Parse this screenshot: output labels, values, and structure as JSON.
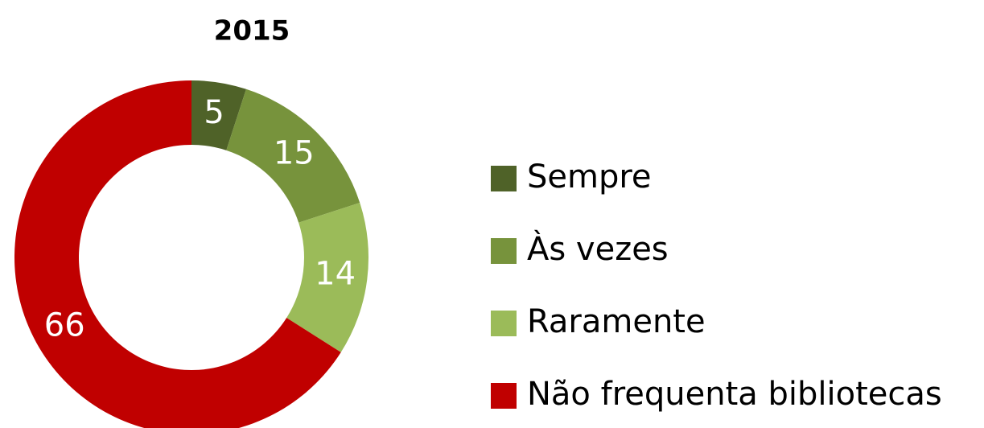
{
  "chart_data": {
    "type": "donut",
    "title": "2015",
    "categories": [
      "Sempre",
      "Às vezes",
      "Raramente",
      "Não frequenta bibliotecas"
    ],
    "values": [
      5,
      15,
      14,
      66
    ],
    "colors": [
      "#4f6228",
      "#77933c",
      "#9bbb59",
      "#c00000"
    ],
    "legend": "right"
  }
}
